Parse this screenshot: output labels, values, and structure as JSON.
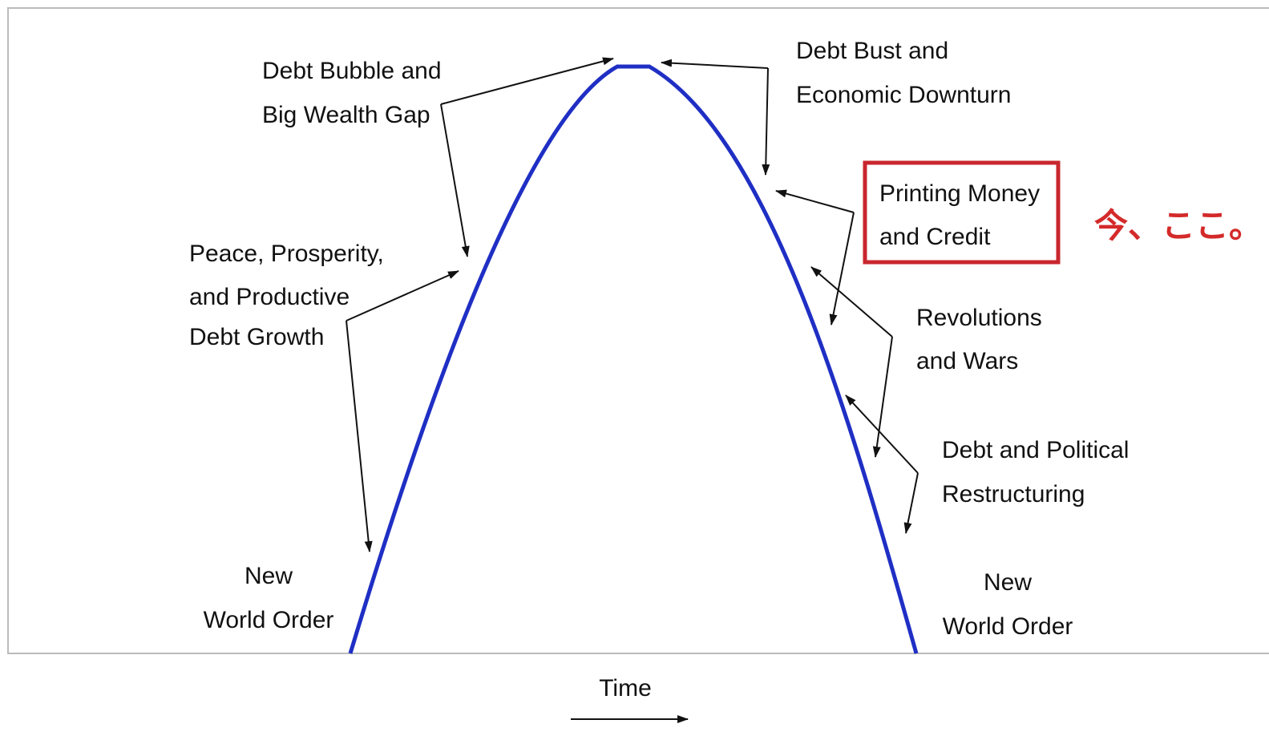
{
  "labels": [
    {
      "lines": [
        "Debt Bubble and",
        "Big Wealth Gap"
      ]
    },
    {
      "lines": [
        "Debt Bust and",
        "Economic Downturn"
      ]
    },
    {
      "lines": [
        "Printing Money",
        "and Credit"
      ]
    },
    {
      "lines": [
        "Peace, Prosperity,",
        "and Productive",
        "Debt Growth"
      ]
    },
    {
      "lines": [
        "Revolutions",
        "and Wars"
      ]
    },
    {
      "lines": [
        "Debt and Political",
        "Restructuring"
      ]
    },
    {
      "lines": [
        "New",
        "World Order"
      ]
    },
    {
      "lines": [
        "New",
        "World Order"
      ]
    }
  ],
  "annotation": "今、ここ。",
  "axis_label": "Time"
}
